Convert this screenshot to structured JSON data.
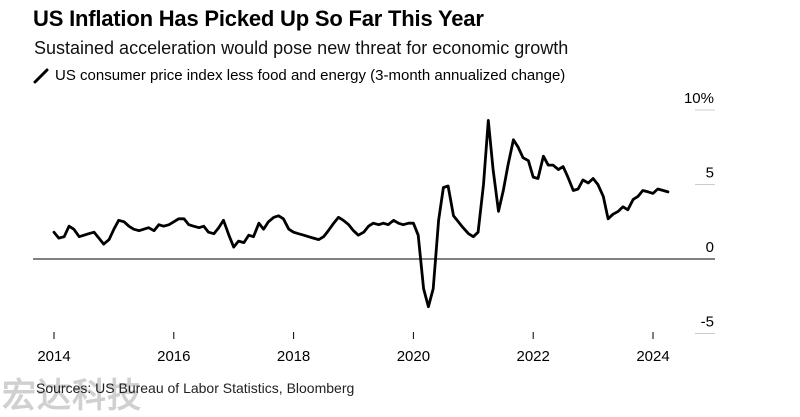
{
  "header": {
    "title": "US Inflation Has Picked Up So Far This Year",
    "subtitle": "Sustained acceleration would pose new threat for economic growth"
  },
  "legend": {
    "label": "US consumer price index less food and energy (3-month annualized change)"
  },
  "footer": {
    "source": "Sources: US Bureau of Labor Statistics, Bloomberg",
    "watermark": "宏达科技"
  },
  "colors": {
    "line": "#000000",
    "zero_line": "#000000",
    "grid": "#cccccc"
  },
  "chart_data": {
    "type": "line",
    "title": "US Inflation Has Picked Up So Far This Year",
    "subtitle": "Sustained acceleration would pose new threat for economic growth",
    "xlabel": "",
    "ylabel": "",
    "xlim": [
      2014,
      2024.6
    ],
    "ylim": [
      -5,
      10
    ],
    "x_ticks": [
      2014,
      2016,
      2018,
      2020,
      2022,
      2024
    ],
    "x_tick_labels": [
      "2014",
      "2016",
      "2018",
      "2020",
      "2022",
      "2024"
    ],
    "y_ticks": [
      10,
      5,
      0,
      -5
    ],
    "y_tick_labels": [
      "10%",
      "5",
      "0",
      "-5"
    ],
    "grid": false,
    "legend_position": "top-left",
    "series": [
      {
        "name": "US consumer price index less food and energy (3-month annualized change)",
        "x": [
          2014.0,
          2014.08,
          2014.17,
          2014.25,
          2014.33,
          2014.42,
          2014.5,
          2014.58,
          2014.67,
          2014.75,
          2014.83,
          2014.92,
          2015.0,
          2015.08,
          2015.17,
          2015.25,
          2015.33,
          2015.42,
          2015.5,
          2015.58,
          2015.67,
          2015.75,
          2015.83,
          2015.92,
          2016.0,
          2016.08,
          2016.17,
          2016.25,
          2016.33,
          2016.42,
          2016.5,
          2016.58,
          2016.67,
          2016.75,
          2016.83,
          2016.92,
          2017.0,
          2017.08,
          2017.17,
          2017.25,
          2017.33,
          2017.42,
          2017.5,
          2017.58,
          2017.67,
          2017.75,
          2017.83,
          2017.92,
          2018.0,
          2018.08,
          2018.17,
          2018.25,
          2018.33,
          2018.42,
          2018.5,
          2018.58,
          2018.67,
          2018.75,
          2018.83,
          2018.92,
          2019.0,
          2019.08,
          2019.17,
          2019.25,
          2019.33,
          2019.42,
          2019.5,
          2019.58,
          2019.67,
          2019.75,
          2019.83,
          2019.92,
          2020.0,
          2020.08,
          2020.17,
          2020.25,
          2020.33,
          2020.42,
          2020.5,
          2020.58,
          2020.67,
          2020.75,
          2020.83,
          2020.92,
          2021.0,
          2021.08,
          2021.17,
          2021.25,
          2021.33,
          2021.42,
          2021.5,
          2021.58,
          2021.67,
          2021.75,
          2021.83,
          2021.92,
          2022.0,
          2022.08,
          2022.17,
          2022.25,
          2022.33,
          2022.42,
          2022.5,
          2022.58,
          2022.67,
          2022.75,
          2022.83,
          2022.92,
          2023.0,
          2023.08,
          2023.17,
          2023.25,
          2023.33,
          2023.42,
          2023.5,
          2023.58,
          2023.67,
          2023.75,
          2023.83,
          2023.92,
          2024.0,
          2024.08,
          2024.17,
          2024.25
        ],
        "values": [
          1.8,
          1.4,
          1.5,
          2.2,
          2.0,
          1.5,
          1.6,
          1.7,
          1.8,
          1.4,
          1.0,
          1.3,
          2.0,
          2.6,
          2.5,
          2.2,
          2.0,
          1.9,
          2.0,
          2.1,
          1.9,
          2.3,
          2.2,
          2.3,
          2.5,
          2.7,
          2.7,
          2.3,
          2.2,
          2.1,
          2.2,
          1.8,
          1.7,
          2.1,
          2.6,
          1.6,
          0.8,
          1.2,
          1.1,
          1.6,
          1.5,
          2.4,
          2.0,
          2.5,
          2.8,
          2.9,
          2.7,
          2.0,
          1.8,
          1.7,
          1.6,
          1.5,
          1.4,
          1.3,
          1.5,
          1.9,
          2.4,
          2.8,
          2.6,
          2.3,
          1.9,
          1.6,
          1.8,
          2.2,
          2.4,
          2.3,
          2.4,
          2.3,
          2.6,
          2.4,
          2.3,
          2.4,
          2.4,
          1.6,
          -2.0,
          -3.2,
          -2.0,
          2.6,
          4.8,
          4.9,
          2.9,
          2.5,
          2.1,
          1.7,
          1.5,
          1.8,
          5.0,
          9.3,
          6.0,
          3.2,
          4.6,
          6.3,
          8.0,
          7.5,
          6.8,
          6.6,
          5.5,
          5.4,
          6.9,
          6.3,
          6.3,
          6.0,
          6.2,
          5.5,
          4.6,
          4.7,
          5.3,
          5.1,
          5.4,
          5.0,
          4.2,
          2.7,
          3.0,
          3.2,
          3.5,
          3.3,
          4.0,
          4.2,
          4.6,
          4.5,
          4.4,
          4.7,
          4.6,
          4.5
        ]
      }
    ]
  }
}
